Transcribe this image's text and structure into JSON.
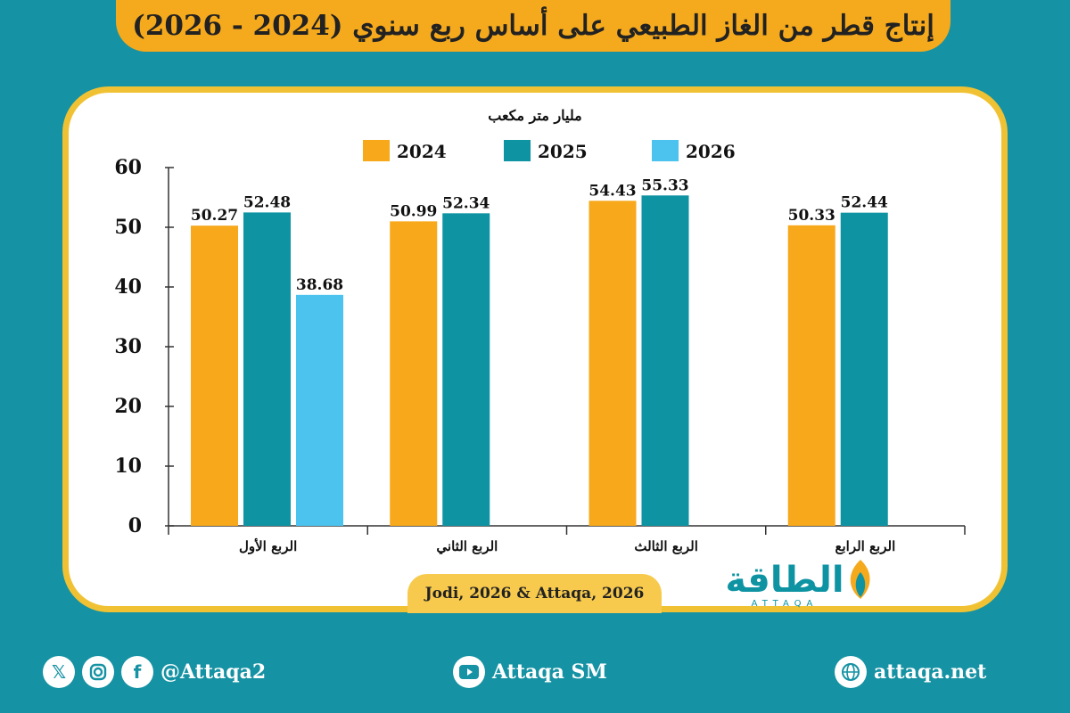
{
  "header": {
    "title": "إنتاج قطر من الغاز الطبيعي على أساس ربع سنوي (2024 - 2026)"
  },
  "chart_data": {
    "type": "bar",
    "ylabel": "مليار متر مكعب",
    "ylim": [
      0,
      60
    ],
    "yticks": [
      0,
      10,
      20,
      30,
      40,
      50,
      60
    ],
    "categories": [
      "الربع الأول",
      "الربع الثاني",
      "الربع الثالث",
      "الربع الرابع"
    ],
    "series": [
      {
        "name": "2024",
        "color": "#f7a81b",
        "values": [
          50.27,
          50.99,
          54.43,
          50.33
        ]
      },
      {
        "name": "2025",
        "color": "#0e93a3",
        "values": [
          52.48,
          52.34,
          55.33,
          52.44
        ]
      },
      {
        "name": "2026",
        "color": "#4bc3ee",
        "values": [
          38.68,
          null,
          null,
          null
        ]
      }
    ],
    "legend_position": "top",
    "grid": false
  },
  "source": {
    "text": "Jodi, 2026 & Attaqa, 2026"
  },
  "logo": {
    "text": "الطاقة",
    "subtext": "ATTAQA"
  },
  "footer": {
    "social_handle": "@Attaqa2",
    "youtube": "Attaqa SM",
    "website": "attaqa.net",
    "social_icons": [
      "x-icon",
      "instagram-icon",
      "facebook-icon"
    ]
  }
}
